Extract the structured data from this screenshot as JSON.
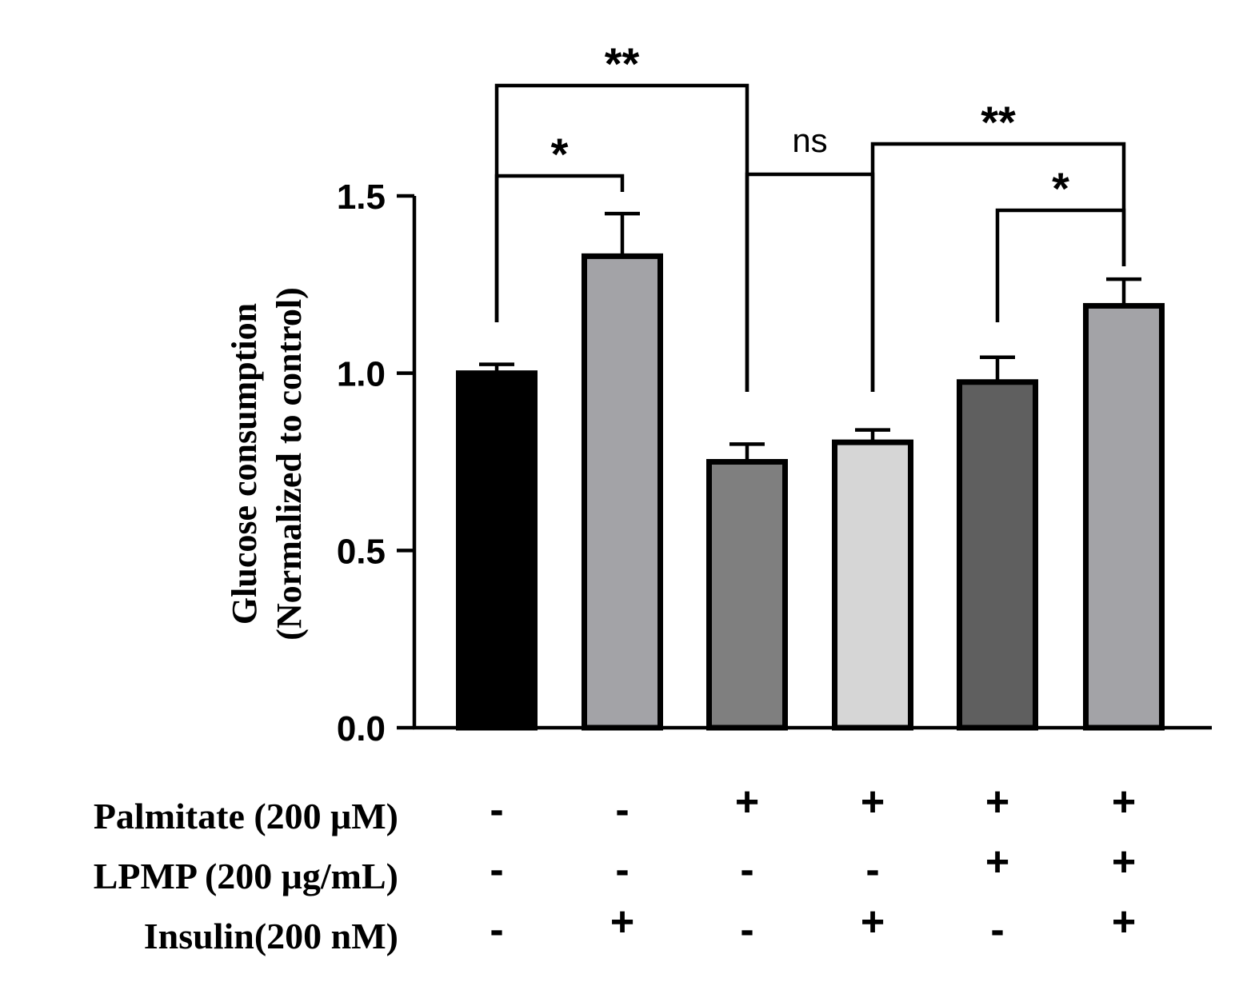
{
  "chart_data": {
    "type": "bar",
    "title": "",
    "xlabel": "",
    "ylabel": [
      "Glucose consumption",
      "(Normalized to control)"
    ],
    "ylim": [
      0,
      1.5
    ],
    "yticks": [
      "0.0",
      "0.5",
      "1.0",
      "1.5"
    ],
    "ytick_values": [
      0,
      0.5,
      1.0,
      1.5
    ],
    "grid": false,
    "bars": [
      {
        "value": 1.0,
        "error": 0.025,
        "color": "#000000"
      },
      {
        "value": 1.33,
        "error": 0.12,
        "color": "#a3a3a7"
      },
      {
        "value": 0.75,
        "error": 0.05,
        "color": "#7f7f7f"
      },
      {
        "value": 0.805,
        "error": 0.035,
        "color": "#d6d6d6"
      },
      {
        "value": 0.975,
        "error": 0.07,
        "color": "#5f5f5f"
      },
      {
        "value": 1.19,
        "error": 0.075,
        "color": "#a3a3a7"
      }
    ],
    "conditions": [
      {
        "label": "Palmitate (200 μM)",
        "signs": [
          "-",
          "-",
          "+",
          "+",
          "+",
          "+"
        ]
      },
      {
        "label": "LPMP (200 μg/mL)",
        "signs": [
          "-",
          "-",
          "-",
          "-",
          "+",
          "+"
        ]
      },
      {
        "label": "Insulin(200 nM)",
        "signs": [
          "-",
          "+",
          "-",
          "+",
          "-",
          "+"
        ]
      }
    ],
    "comparisons": [
      {
        "from": 0,
        "to": 2,
        "label": "**",
        "kind": "star"
      },
      {
        "from": 0,
        "to": 1,
        "label": "*",
        "kind": "star"
      },
      {
        "from": 2,
        "to": 3,
        "label": "ns",
        "kind": "ns"
      },
      {
        "from": 3,
        "to": 5,
        "label": "**",
        "kind": "star"
      },
      {
        "from": 4,
        "to": 5,
        "label": "*",
        "kind": "star"
      }
    ]
  }
}
